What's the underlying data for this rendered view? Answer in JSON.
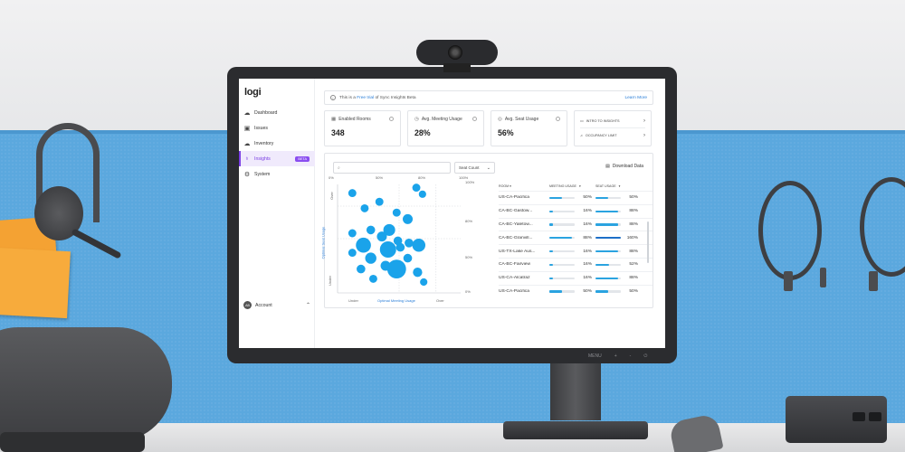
{
  "app": {
    "logo": "logi",
    "nav": [
      {
        "label": "Dashboard",
        "icon": "cloud-icon"
      },
      {
        "label": "Issues",
        "icon": "alert-icon"
      },
      {
        "label": "Inventory",
        "icon": "box-icon"
      },
      {
        "label": "Insights",
        "icon": "lightbulb-icon",
        "badge": "BETA",
        "active": true
      },
      {
        "label": "System",
        "icon": "gear-icon"
      }
    ],
    "account": {
      "initials": "AB",
      "label": "Account"
    }
  },
  "banner": {
    "prefix": "This is a ",
    "link": "Free trial",
    "suffix": " of Sync Insights Beta",
    "learn_more": "Learn More"
  },
  "cards": [
    {
      "title": "Enabled Rooms",
      "value": "348",
      "icon": "room-icon"
    },
    {
      "title": "Avg. Meeting Usage",
      "value": "28%",
      "icon": "meeting-icon"
    },
    {
      "title": "Avg. Seat Usage",
      "value": "56%",
      "icon": "seat-icon"
    }
  ],
  "links": [
    {
      "label": "INTRO TO INSIGHTS",
      "icon": "presentation-icon"
    },
    {
      "label": "OCCUPANCY LIMIT",
      "icon": "bell-icon"
    }
  ],
  "toolbar": {
    "search_placeholder": "",
    "select_value": "Seat Count",
    "download_label": "Download Data"
  },
  "plot": {
    "y_axis_label": "Optimal Seat Usage",
    "x_axis_label": "Optimal Meeting Usage",
    "y_top": "Over",
    "y_bottom": "Under",
    "x_left": "Under",
    "x_right": "Over",
    "top_ticks": [
      "0%",
      "50%",
      "80%",
      "100%"
    ],
    "right_ticks": [
      "100%",
      "80%",
      "50%",
      "0%"
    ],
    "points": [
      {
        "x": 0.12,
        "y": 0.92,
        "r": 0.35
      },
      {
        "x": 0.22,
        "y": 0.78,
        "r": 0.35
      },
      {
        "x": 0.34,
        "y": 0.84,
        "r": 0.35
      },
      {
        "x": 0.64,
        "y": 0.97,
        "r": 0.35
      },
      {
        "x": 0.69,
        "y": 0.91,
        "r": 0.3
      },
      {
        "x": 0.48,
        "y": 0.74,
        "r": 0.35
      },
      {
        "x": 0.57,
        "y": 0.68,
        "r": 0.5
      },
      {
        "x": 0.42,
        "y": 0.58,
        "r": 0.65
      },
      {
        "x": 0.27,
        "y": 0.58,
        "r": 0.4
      },
      {
        "x": 0.49,
        "y": 0.48,
        "r": 0.4
      },
      {
        "x": 0.58,
        "y": 0.46,
        "r": 0.4
      },
      {
        "x": 0.36,
        "y": 0.52,
        "r": 0.5
      },
      {
        "x": 0.12,
        "y": 0.55,
        "r": 0.35
      },
      {
        "x": 0.21,
        "y": 0.44,
        "r": 0.9
      },
      {
        "x": 0.41,
        "y": 0.4,
        "r": 1.0
      },
      {
        "x": 0.51,
        "y": 0.42,
        "r": 0.4
      },
      {
        "x": 0.66,
        "y": 0.44,
        "r": 0.75
      },
      {
        "x": 0.12,
        "y": 0.37,
        "r": 0.35
      },
      {
        "x": 0.27,
        "y": 0.32,
        "r": 0.6
      },
      {
        "x": 0.39,
        "y": 0.25,
        "r": 0.5
      },
      {
        "x": 0.57,
        "y": 0.32,
        "r": 0.4
      },
      {
        "x": 0.19,
        "y": 0.22,
        "r": 0.4
      },
      {
        "x": 0.48,
        "y": 0.22,
        "r": 1.2
      },
      {
        "x": 0.65,
        "y": 0.19,
        "r": 0.45
      },
      {
        "x": 0.29,
        "y": 0.13,
        "r": 0.35
      },
      {
        "x": 0.7,
        "y": 0.1,
        "r": 0.3
      }
    ]
  },
  "table": {
    "headers": {
      "room": "ROOM",
      "meeting": "MEETING USAGE",
      "seat": "SEAT USAGE"
    },
    "rows": [
      {
        "room": "US-CA-Pacifica",
        "meeting": "50%",
        "meeting_v": 0.5,
        "seat": "50%",
        "seat_v": 0.5
      },
      {
        "room": "CA-BC-Gastow...",
        "meeting": "16%",
        "meeting_v": 0.16,
        "seat": "88%",
        "seat_v": 0.88
      },
      {
        "room": "CA-BC-Yaletow...",
        "meeting": "16%",
        "meeting_v": 0.16,
        "seat": "88%",
        "seat_v": 0.88
      },
      {
        "room": "CA-BC-Granvill...",
        "meeting": "88%",
        "meeting_v": 0.88,
        "seat": "160%",
        "seat_v": 1.0,
        "seat_over": true
      },
      {
        "room": "US-TX-Lake Aus...",
        "meeting": "16%",
        "meeting_v": 0.16,
        "seat": "88%",
        "seat_v": 0.88
      },
      {
        "room": "CA-BC-Fairview",
        "meeting": "16%",
        "meeting_v": 0.16,
        "seat": "52%",
        "seat_v": 0.52
      },
      {
        "room": "US-CA-Alcatraz",
        "meeting": "16%",
        "meeting_v": 0.16,
        "seat": "88%",
        "seat_v": 0.88
      },
      {
        "room": "US-CA-Pacifica",
        "meeting": "50%",
        "meeting_v": 0.5,
        "seat": "50%",
        "seat_v": 0.5
      }
    ]
  },
  "monitor": {
    "osd": [
      "MENU",
      "+",
      "-",
      "⏻"
    ]
  },
  "colors": {
    "accent": "#7b3fe4",
    "bubble": "#1aa3ea",
    "bar": "#2aa3e0",
    "panel": "#5ba8de"
  }
}
